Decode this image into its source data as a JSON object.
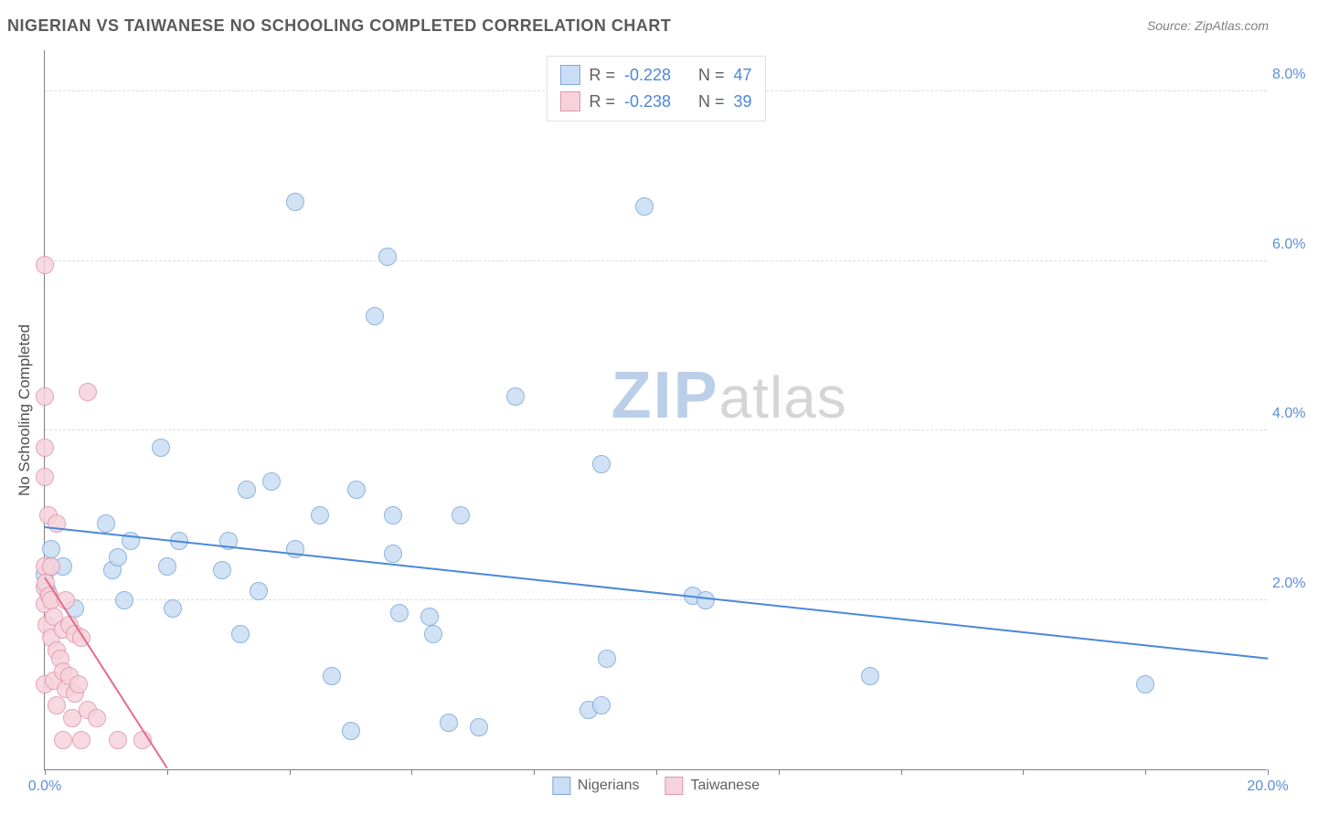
{
  "title": "NIGERIAN VS TAIWANESE NO SCHOOLING COMPLETED CORRELATION CHART",
  "source_label": "Source: ZipAtlas.com",
  "ylabel": "No Schooling Completed",
  "watermark": {
    "part1": "ZIP",
    "part2": "atlas"
  },
  "chart": {
    "type": "scatter",
    "xlim": [
      0,
      20
    ],
    "ylim": [
      0,
      8.5
    ],
    "x_ticks": [
      0,
      2,
      4,
      6,
      8,
      10,
      12,
      14,
      16,
      18,
      20
    ],
    "x_tick_labels": {
      "0": "0.0%",
      "20": "20.0%"
    },
    "y_gridlines": [
      2,
      4,
      6,
      8
    ],
    "y_tick_labels": {
      "2": "2.0%",
      "4": "4.0%",
      "6": "6.0%",
      "8": "8.0%"
    },
    "background_color": "#ffffff",
    "grid_color": "#dcdcdc",
    "axis_color": "#808080",
    "tick_label_color": "#5b8fd6",
    "axis_label_color": "#505050",
    "marker_radius": 10,
    "marker_stroke_width": 1,
    "series": [
      {
        "name": "Nigerians",
        "fill": "#c9ddf4",
        "stroke": "#7aa8da",
        "R": "-0.228",
        "N": "47",
        "trend": {
          "x1": 0,
          "y1": 2.85,
          "x2": 20,
          "y2": 1.3,
          "color": "#4a88d8",
          "width": 2
        },
        "points": [
          [
            0.0,
            2.3
          ],
          [
            0.05,
            2.1
          ],
          [
            0.1,
            2.4
          ],
          [
            0.1,
            2.6
          ],
          [
            0.3,
            2.4
          ],
          [
            0.5,
            1.9
          ],
          [
            1.0,
            2.9
          ],
          [
            1.1,
            2.35
          ],
          [
            1.2,
            2.5
          ],
          [
            1.3,
            2.0
          ],
          [
            1.4,
            2.7
          ],
          [
            1.9,
            3.8
          ],
          [
            2.0,
            2.4
          ],
          [
            2.1,
            1.9
          ],
          [
            2.2,
            2.7
          ],
          [
            2.9,
            2.35
          ],
          [
            3.0,
            2.7
          ],
          [
            3.2,
            1.6
          ],
          [
            3.3,
            3.3
          ],
          [
            3.5,
            2.1
          ],
          [
            3.7,
            3.4
          ],
          [
            4.1,
            6.7
          ],
          [
            4.1,
            2.6
          ],
          [
            4.5,
            3.0
          ],
          [
            4.7,
            1.1
          ],
          [
            5.0,
            0.45
          ],
          [
            5.1,
            3.3
          ],
          [
            5.4,
            5.35
          ],
          [
            5.6,
            6.05
          ],
          [
            5.7,
            3.0
          ],
          [
            5.7,
            2.55
          ],
          [
            5.8,
            1.85
          ],
          [
            6.3,
            1.8
          ],
          [
            6.35,
            1.6
          ],
          [
            6.6,
            0.55
          ],
          [
            6.8,
            3.0
          ],
          [
            7.1,
            0.5
          ],
          [
            7.7,
            4.4
          ],
          [
            8.9,
            0.7
          ],
          [
            9.1,
            0.75
          ],
          [
            9.1,
            3.6
          ],
          [
            9.2,
            1.3
          ],
          [
            9.8,
            6.65
          ],
          [
            10.6,
            2.05
          ],
          [
            10.8,
            2.0
          ],
          [
            13.5,
            1.1
          ],
          [
            18.0,
            1.0
          ]
        ]
      },
      {
        "name": "Taiwanese",
        "fill": "#f6d3dc",
        "stroke": "#e195ab",
        "R": "-0.238",
        "N": "39",
        "trend": {
          "x1": 0,
          "y1": 2.25,
          "x2": 2.0,
          "y2": 0,
          "color": "#e56b8c",
          "width": 2
        },
        "points": [
          [
            0.0,
            5.95
          ],
          [
            0.0,
            4.4
          ],
          [
            0.0,
            3.8
          ],
          [
            0.0,
            3.45
          ],
          [
            0.0,
            2.4
          ],
          [
            0.0,
            2.15
          ],
          [
            0.0,
            1.95
          ],
          [
            0.0,
            1.0
          ],
          [
            0.02,
            2.2
          ],
          [
            0.03,
            1.7
          ],
          [
            0.06,
            3.0
          ],
          [
            0.08,
            2.05
          ],
          [
            0.1,
            2.4
          ],
          [
            0.1,
            2.0
          ],
          [
            0.1,
            1.55
          ],
          [
            0.15,
            1.8
          ],
          [
            0.15,
            1.05
          ],
          [
            0.2,
            2.9
          ],
          [
            0.2,
            1.4
          ],
          [
            0.2,
            0.75
          ],
          [
            0.25,
            1.3
          ],
          [
            0.3,
            1.65
          ],
          [
            0.3,
            1.15
          ],
          [
            0.3,
            0.35
          ],
          [
            0.35,
            2.0
          ],
          [
            0.35,
            0.95
          ],
          [
            0.4,
            1.7
          ],
          [
            0.4,
            1.1
          ],
          [
            0.45,
            0.6
          ],
          [
            0.5,
            1.6
          ],
          [
            0.5,
            0.9
          ],
          [
            0.55,
            1.0
          ],
          [
            0.6,
            1.55
          ],
          [
            0.6,
            0.35
          ],
          [
            0.7,
            0.7
          ],
          [
            0.7,
            4.45
          ],
          [
            0.85,
            0.6
          ],
          [
            1.2,
            0.35
          ],
          [
            1.6,
            0.35
          ]
        ]
      }
    ],
    "legend_stats": [
      {
        "swatch_fill": "#c9ddf4",
        "swatch_stroke": "#7aa8da",
        "R_label": "R =",
        "R": "-0.228",
        "N_label": "N =",
        "N": "47"
      },
      {
        "swatch_fill": "#f6d3dc",
        "swatch_stroke": "#e195ab",
        "R_label": "R =",
        "R": "-0.238",
        "N_label": "N =",
        "N": "39"
      }
    ]
  }
}
